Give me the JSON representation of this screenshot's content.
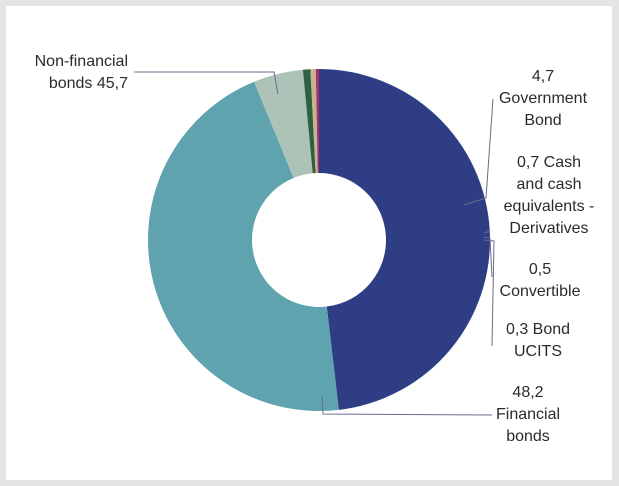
{
  "chart_data": {
    "type": "pie",
    "donut": true,
    "start_angle_deg": -90,
    "direction": "clockwise",
    "slices": [
      {
        "value_text": "48,2",
        "value": 48.2,
        "label": "Financial bonds",
        "color": "#2f3e84"
      },
      {
        "value_text": "45,7",
        "value": 45.7,
        "label": "Non-financial bonds",
        "color": "#5fa3ae"
      },
      {
        "value_text": "4,7",
        "value": 4.7,
        "label": "Government Bond",
        "color": "#aec3b8"
      },
      {
        "value_text": "0,7",
        "value": 0.7,
        "label": "Cash and cash equivalents - Derivatives",
        "color": "#2e6043"
      },
      {
        "value_text": "0,5",
        "value": 0.5,
        "label": "Convertible",
        "color": "#c8b48a"
      },
      {
        "value_text": "0,3",
        "value": 0.3,
        "label": "Bond UCITS",
        "color": "#a4316f"
      }
    ],
    "labels": {
      "nonfin": {
        "line1": "Non-financial",
        "line2": "bonds  45,7"
      },
      "gov": {
        "line1": "4,7",
        "line2": "Government",
        "line3": "Bond"
      },
      "cash": {
        "line1": "0,7  Cash",
        "line2": "and cash",
        "line3": "equivalents -",
        "line4": "Derivatives"
      },
      "conv": {
        "line1": "0,5",
        "line2": "Convertible"
      },
      "ucits": {
        "line1": "0,3  Bond",
        "line2": "UCITS"
      },
      "fin": {
        "line1": "48,2",
        "line2": "Financial",
        "line3": "bonds"
      }
    }
  }
}
